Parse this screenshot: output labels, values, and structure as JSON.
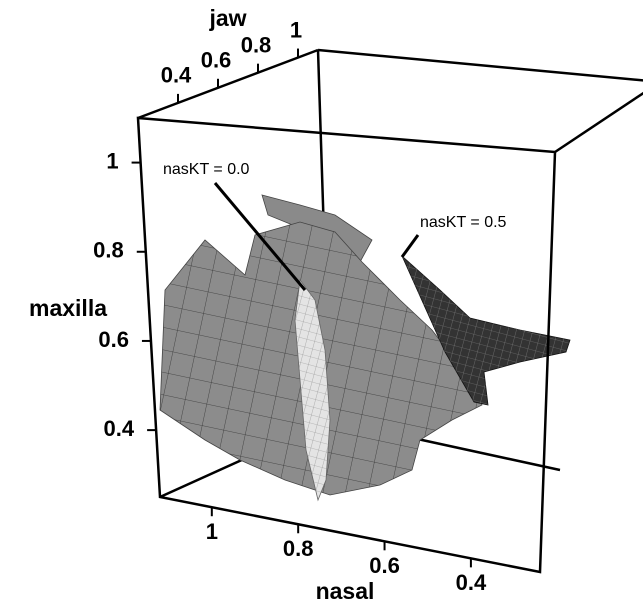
{
  "chart_data": {
    "type": "surface3d",
    "xlabel": "nasal",
    "xlim": [
      1.12,
      0.24
    ],
    "xticks": [
      1,
      0.8,
      0.6,
      0.4
    ],
    "ylabel": "jaw",
    "ylim": [
      0.2,
      1.1
    ],
    "yticks": [
      0.4,
      0.6,
      0.8,
      1
    ],
    "zlabel": "maxilla",
    "zlim": [
      0.25,
      1.1
    ],
    "zticks": [
      0.4,
      0.6,
      0.8,
      1
    ],
    "annotations": [
      "nasKT = 0.0",
      "nasKT = 0.5"
    ]
  }
}
